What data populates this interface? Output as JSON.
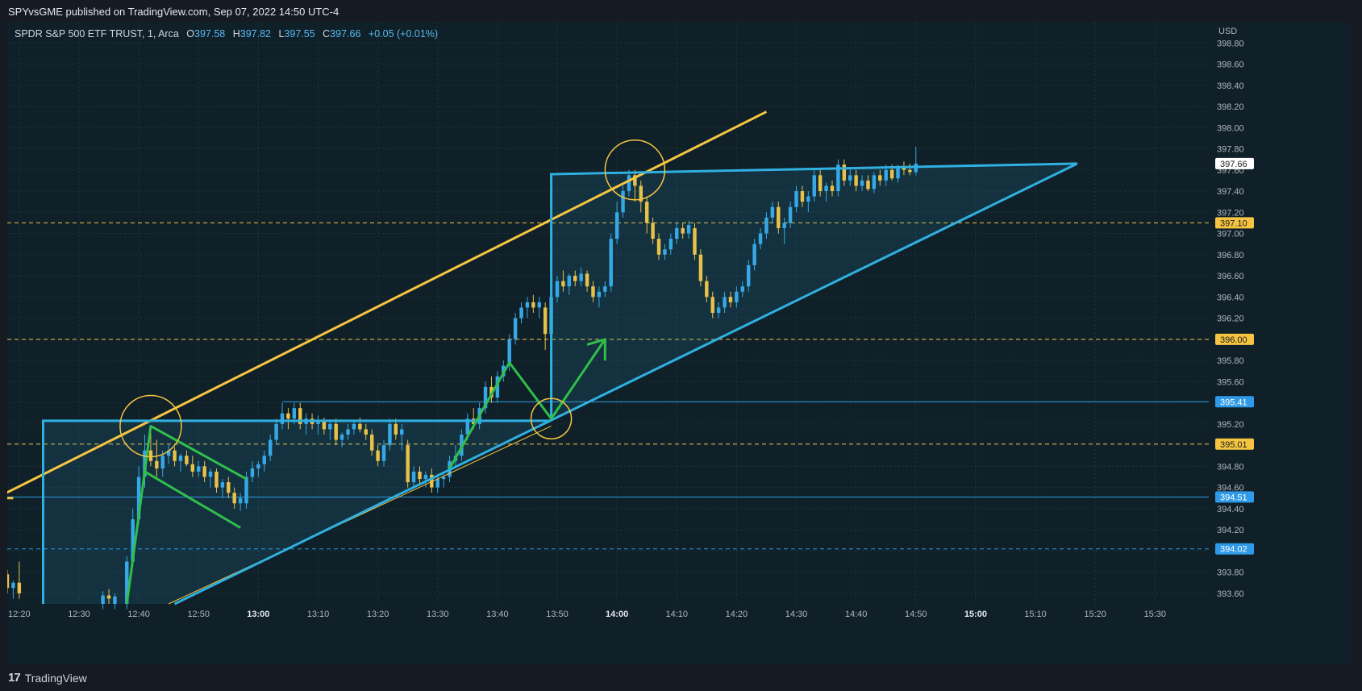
{
  "header": {
    "published": "SPYvsGME published on TradingView.com, Sep 07, 2022 14:50 UTC-4"
  },
  "legend": {
    "symbol": "SPDR S&P 500 ETF TRUST, 1, Arca",
    "open_label": "O",
    "open": "397.58",
    "high_label": "H",
    "high": "397.82",
    "low_label": "L",
    "low": "397.55",
    "close_label": "C",
    "close": "397.66",
    "change": "+0.05 (+0.01%)"
  },
  "footer": {
    "brand": "TradingView",
    "logo_glyph": "17"
  },
  "colors": {
    "background": "#151a23",
    "up_candle": "#37a8e6",
    "down_candle": "#e8c14a",
    "triangle": "#2fb0e0",
    "trendline": "#f5c542",
    "arrows": "#2fbf4a",
    "level_dashed": "#f5c542",
    "level_blue": "#2f9be8"
  },
  "chart_data": {
    "type": "candlestick",
    "symbol": "SPY",
    "interval": "1",
    "currency": "USD",
    "ylim": [
      393.5,
      399.0
    ],
    "y_ticks": [
      "393.60",
      "393.80",
      "394.00",
      "394.20",
      "394.40",
      "394.60",
      "394.80",
      "395.00",
      "395.20",
      "395.40",
      "395.60",
      "395.80",
      "396.00",
      "396.20",
      "396.40",
      "396.60",
      "396.80",
      "397.00",
      "397.20",
      "397.40",
      "397.60",
      "397.80",
      "398.00",
      "398.20",
      "398.40",
      "398.60",
      "398.80"
    ],
    "x_ticks": [
      "12:20",
      "12:30",
      "12:40",
      "12:50",
      "13:00",
      "13:10",
      "13:20",
      "13:30",
      "13:40",
      "13:50",
      "14:00",
      "14:10",
      "14:20",
      "14:30",
      "14:40",
      "14:50",
      "15:00",
      "15:10",
      "15:20",
      "15:30"
    ],
    "x_bold_ticks": [
      "13:00",
      "14:00",
      "15:00"
    ],
    "xlim_minutes_from_midnight": [
      738,
      939
    ],
    "price_badges": [
      {
        "label": "397.66",
        "value": 397.66,
        "style": "last"
      },
      {
        "label": "397.10",
        "value": 397.1,
        "style": "yellow"
      },
      {
        "label": "396.00",
        "value": 396.0,
        "style": "yellow"
      },
      {
        "label": "395.41",
        "value": 395.41,
        "style": "blue"
      },
      {
        "label": "395.01",
        "value": 395.01,
        "style": "yellow"
      },
      {
        "label": "394.51",
        "value": 394.51,
        "style": "blue"
      },
      {
        "label": "394.02",
        "value": 394.02,
        "style": "blue-dash"
      }
    ],
    "candles": [
      {
        "t": "12:17",
        "o": 393.7,
        "h": 393.85,
        "l": 393.6,
        "c": 393.78
      },
      {
        "t": "12:18",
        "o": 393.78,
        "h": 393.82,
        "l": 393.6,
        "c": 393.65
      },
      {
        "t": "12:19",
        "o": 393.65,
        "h": 393.72,
        "l": 393.55,
        "c": 393.7
      },
      {
        "t": "12:20",
        "o": 393.7,
        "h": 393.9,
        "l": 393.55,
        "c": 393.6
      },
      {
        "t": "12:34",
        "o": 393.5,
        "h": 393.62,
        "l": 393.45,
        "c": 393.58
      },
      {
        "t": "12:35",
        "o": 393.58,
        "h": 393.64,
        "l": 393.5,
        "c": 393.55
      },
      {
        "t": "12:36",
        "o": 393.5,
        "h": 393.6,
        "l": 393.45,
        "c": 393.57
      },
      {
        "t": "12:38",
        "o": 393.5,
        "h": 393.95,
        "l": 393.45,
        "c": 393.9
      },
      {
        "t": "12:39",
        "o": 393.9,
        "h": 394.4,
        "l": 393.85,
        "c": 394.3
      },
      {
        "t": "12:40",
        "o": 394.3,
        "h": 394.8,
        "l": 394.25,
        "c": 394.7
      },
      {
        "t": "12:41",
        "o": 394.7,
        "h": 395.1,
        "l": 394.6,
        "c": 394.95
      },
      {
        "t": "12:42",
        "o": 394.95,
        "h": 395.15,
        "l": 394.8,
        "c": 394.85
      },
      {
        "t": "12:43",
        "o": 394.85,
        "h": 395.05,
        "l": 394.7,
        "c": 394.78
      },
      {
        "t": "12:44",
        "o": 394.78,
        "h": 394.95,
        "l": 394.7,
        "c": 394.9
      },
      {
        "t": "12:45",
        "o": 394.9,
        "h": 395.0,
        "l": 394.82,
        "c": 394.95
      },
      {
        "t": "12:46",
        "o": 394.95,
        "h": 394.98,
        "l": 394.8,
        "c": 394.85
      },
      {
        "t": "12:47",
        "o": 394.85,
        "h": 394.92,
        "l": 394.75,
        "c": 394.9
      },
      {
        "t": "12:48",
        "o": 394.9,
        "h": 394.95,
        "l": 394.8,
        "c": 394.82
      },
      {
        "t": "12:49",
        "o": 394.82,
        "h": 394.9,
        "l": 394.7,
        "c": 394.75
      },
      {
        "t": "12:50",
        "o": 394.75,
        "h": 394.85,
        "l": 394.7,
        "c": 394.8
      },
      {
        "t": "12:51",
        "o": 394.8,
        "h": 394.85,
        "l": 394.65,
        "c": 394.7
      },
      {
        "t": "12:52",
        "o": 394.7,
        "h": 394.78,
        "l": 394.6,
        "c": 394.75
      },
      {
        "t": "12:53",
        "o": 394.75,
        "h": 394.78,
        "l": 394.55,
        "c": 394.6
      },
      {
        "t": "12:54",
        "o": 394.6,
        "h": 394.68,
        "l": 394.5,
        "c": 394.65
      },
      {
        "t": "12:55",
        "o": 394.65,
        "h": 394.7,
        "l": 394.5,
        "c": 394.55
      },
      {
        "t": "12:56",
        "o": 394.55,
        "h": 394.6,
        "l": 394.4,
        "c": 394.45
      },
      {
        "t": "12:57",
        "o": 394.45,
        "h": 394.55,
        "l": 394.38,
        "c": 394.5
      },
      {
        "t": "12:58",
        "o": 394.45,
        "h": 394.75,
        "l": 394.4,
        "c": 394.7
      },
      {
        "t": "12:59",
        "o": 394.7,
        "h": 394.85,
        "l": 394.65,
        "c": 394.78
      },
      {
        "t": "13:00",
        "o": 394.78,
        "h": 394.85,
        "l": 394.7,
        "c": 394.82
      },
      {
        "t": "13:01",
        "o": 394.82,
        "h": 394.95,
        "l": 394.75,
        "c": 394.9
      },
      {
        "t": "13:02",
        "o": 394.9,
        "h": 395.1,
        "l": 394.85,
        "c": 395.05
      },
      {
        "t": "13:03",
        "o": 395.05,
        "h": 395.25,
        "l": 395.0,
        "c": 395.2
      },
      {
        "t": "13:04",
        "o": 395.2,
        "h": 395.4,
        "l": 395.15,
        "c": 395.3
      },
      {
        "t": "13:05",
        "o": 395.3,
        "h": 395.35,
        "l": 395.15,
        "c": 395.25
      },
      {
        "t": "13:06",
        "o": 395.25,
        "h": 395.4,
        "l": 395.2,
        "c": 395.35
      },
      {
        "t": "13:07",
        "o": 395.35,
        "h": 395.4,
        "l": 395.15,
        "c": 395.2
      },
      {
        "t": "13:08",
        "o": 395.2,
        "h": 395.3,
        "l": 395.1,
        "c": 395.25
      },
      {
        "t": "13:09",
        "o": 395.25,
        "h": 395.3,
        "l": 395.15,
        "c": 395.2
      },
      {
        "t": "13:10",
        "o": 395.2,
        "h": 395.28,
        "l": 395.1,
        "c": 395.22
      },
      {
        "t": "13:11",
        "o": 395.22,
        "h": 395.26,
        "l": 395.1,
        "c": 395.15
      },
      {
        "t": "13:12",
        "o": 395.15,
        "h": 395.22,
        "l": 395.05,
        "c": 395.2
      },
      {
        "t": "13:13",
        "o": 395.2,
        "h": 395.25,
        "l": 395.0,
        "c": 395.05
      },
      {
        "t": "13:14",
        "o": 395.05,
        "h": 395.12,
        "l": 394.98,
        "c": 395.1
      },
      {
        "t": "13:15",
        "o": 395.1,
        "h": 395.2,
        "l": 395.05,
        "c": 395.15
      },
      {
        "t": "13:16",
        "o": 395.15,
        "h": 395.22,
        "l": 395.1,
        "c": 395.2
      },
      {
        "t": "13:17",
        "o": 395.2,
        "h": 395.26,
        "l": 395.12,
        "c": 395.15
      },
      {
        "t": "13:18",
        "o": 395.15,
        "h": 395.2,
        "l": 395.05,
        "c": 395.1
      },
      {
        "t": "13:19",
        "o": 395.1,
        "h": 395.15,
        "l": 394.9,
        "c": 394.95
      },
      {
        "t": "13:20",
        "o": 394.95,
        "h": 395.0,
        "l": 394.8,
        "c": 394.85
      },
      {
        "t": "13:21",
        "o": 394.85,
        "h": 395.05,
        "l": 394.8,
        "c": 395.0
      },
      {
        "t": "13:22",
        "o": 395.0,
        "h": 395.25,
        "l": 394.95,
        "c": 395.2
      },
      {
        "t": "13:23",
        "o": 395.2,
        "h": 395.25,
        "l": 395.05,
        "c": 395.1
      },
      {
        "t": "13:24",
        "o": 395.1,
        "h": 395.2,
        "l": 394.95,
        "c": 395.15
      },
      {
        "t": "13:25",
        "o": 395.0,
        "h": 395.05,
        "l": 394.6,
        "c": 394.65
      },
      {
        "t": "13:26",
        "o": 394.65,
        "h": 394.8,
        "l": 394.6,
        "c": 394.75
      },
      {
        "t": "13:27",
        "o": 394.75,
        "h": 394.8,
        "l": 394.62,
        "c": 394.68
      },
      {
        "t": "13:28",
        "o": 394.68,
        "h": 394.75,
        "l": 394.6,
        "c": 394.72
      },
      {
        "t": "13:29",
        "o": 394.72,
        "h": 394.78,
        "l": 394.55,
        "c": 394.6
      },
      {
        "t": "13:30",
        "o": 394.6,
        "h": 394.7,
        "l": 394.55,
        "c": 394.68
      },
      {
        "t": "13:31",
        "o": 394.68,
        "h": 394.75,
        "l": 394.6,
        "c": 394.7
      },
      {
        "t": "13:32",
        "o": 394.7,
        "h": 394.9,
        "l": 394.65,
        "c": 394.85
      },
      {
        "t": "13:33",
        "o": 394.85,
        "h": 395.0,
        "l": 394.8,
        "c": 394.9
      },
      {
        "t": "13:34",
        "o": 394.9,
        "h": 395.15,
        "l": 394.85,
        "c": 395.1
      },
      {
        "t": "13:35",
        "o": 395.1,
        "h": 395.3,
        "l": 395.05,
        "c": 395.25
      },
      {
        "t": "13:36",
        "o": 395.25,
        "h": 395.35,
        "l": 395.15,
        "c": 395.2
      },
      {
        "t": "13:37",
        "o": 395.2,
        "h": 395.4,
        "l": 395.15,
        "c": 395.35
      },
      {
        "t": "13:38",
        "o": 395.35,
        "h": 395.6,
        "l": 395.3,
        "c": 395.55
      },
      {
        "t": "13:39",
        "o": 395.55,
        "h": 395.65,
        "l": 395.4,
        "c": 395.45
      },
      {
        "t": "13:40",
        "o": 395.45,
        "h": 395.7,
        "l": 395.4,
        "c": 395.65
      },
      {
        "t": "13:41",
        "o": 395.65,
        "h": 395.8,
        "l": 395.6,
        "c": 395.75
      },
      {
        "t": "13:42",
        "o": 395.75,
        "h": 396.05,
        "l": 395.7,
        "c": 396.0
      },
      {
        "t": "13:43",
        "o": 396.0,
        "h": 396.25,
        "l": 395.95,
        "c": 396.2
      },
      {
        "t": "13:44",
        "o": 396.2,
        "h": 396.35,
        "l": 396.15,
        "c": 396.3
      },
      {
        "t": "13:45",
        "o": 396.3,
        "h": 396.4,
        "l": 396.2,
        "c": 396.35
      },
      {
        "t": "13:46",
        "o": 396.35,
        "h": 396.42,
        "l": 396.25,
        "c": 396.3
      },
      {
        "t": "13:47",
        "o": 396.3,
        "h": 396.4,
        "l": 396.2,
        "c": 396.35
      },
      {
        "t": "13:48",
        "o": 396.3,
        "h": 396.35,
        "l": 395.9,
        "c": 396.05
      },
      {
        "t": "13:49",
        "o": 396.05,
        "h": 396.45,
        "l": 395.95,
        "c": 396.4
      },
      {
        "t": "13:50",
        "o": 396.4,
        "h": 396.6,
        "l": 396.35,
        "c": 396.55
      },
      {
        "t": "13:51",
        "o": 396.55,
        "h": 396.65,
        "l": 396.45,
        "c": 396.5
      },
      {
        "t": "13:52",
        "o": 396.5,
        "h": 396.62,
        "l": 396.42,
        "c": 396.6
      },
      {
        "t": "13:53",
        "o": 396.6,
        "h": 396.65,
        "l": 396.5,
        "c": 396.55
      },
      {
        "t": "13:54",
        "o": 396.55,
        "h": 396.68,
        "l": 396.5,
        "c": 396.62
      },
      {
        "t": "13:55",
        "o": 396.62,
        "h": 396.65,
        "l": 396.45,
        "c": 396.5
      },
      {
        "t": "13:56",
        "o": 396.5,
        "h": 396.55,
        "l": 396.35,
        "c": 396.4
      },
      {
        "t": "13:57",
        "o": 396.4,
        "h": 396.5,
        "l": 396.3,
        "c": 396.45
      },
      {
        "t": "13:58",
        "o": 396.45,
        "h": 396.55,
        "l": 396.4,
        "c": 396.5
      },
      {
        "t": "13:59",
        "o": 396.5,
        "h": 397.0,
        "l": 396.45,
        "c": 396.95
      },
      {
        "t": "14:00",
        "o": 396.95,
        "h": 397.3,
        "l": 396.9,
        "c": 397.2
      },
      {
        "t": "14:01",
        "o": 397.2,
        "h": 397.45,
        "l": 397.15,
        "c": 397.4
      },
      {
        "t": "14:02",
        "o": 397.4,
        "h": 397.6,
        "l": 397.35,
        "c": 397.55
      },
      {
        "t": "14:03",
        "o": 397.55,
        "h": 397.6,
        "l": 397.3,
        "c": 397.45
      },
      {
        "t": "14:04",
        "o": 397.45,
        "h": 397.5,
        "l": 397.2,
        "c": 397.3
      },
      {
        "t": "14:05",
        "o": 397.3,
        "h": 397.35,
        "l": 397.0,
        "c": 397.1
      },
      {
        "t": "14:06",
        "o": 397.1,
        "h": 397.15,
        "l": 396.9,
        "c": 396.95
      },
      {
        "t": "14:07",
        "o": 396.95,
        "h": 397.0,
        "l": 396.75,
        "c": 396.8
      },
      {
        "t": "14:08",
        "o": 396.8,
        "h": 396.9,
        "l": 396.75,
        "c": 396.85
      },
      {
        "t": "14:09",
        "o": 396.85,
        "h": 397.0,
        "l": 396.8,
        "c": 396.95
      },
      {
        "t": "14:10",
        "o": 396.95,
        "h": 397.1,
        "l": 396.9,
        "c": 397.05
      },
      {
        "t": "14:11",
        "o": 397.05,
        "h": 397.1,
        "l": 396.95,
        "c": 397.0
      },
      {
        "t": "14:12",
        "o": 397.0,
        "h": 397.12,
        "l": 396.95,
        "c": 397.08
      },
      {
        "t": "14:13",
        "o": 397.05,
        "h": 397.1,
        "l": 396.75,
        "c": 396.8
      },
      {
        "t": "14:14",
        "o": 396.8,
        "h": 396.85,
        "l": 396.5,
        "c": 396.55
      },
      {
        "t": "14:15",
        "o": 396.55,
        "h": 396.6,
        "l": 396.35,
        "c": 396.4
      },
      {
        "t": "14:16",
        "o": 396.4,
        "h": 396.45,
        "l": 396.2,
        "c": 396.25
      },
      {
        "t": "14:17",
        "o": 396.25,
        "h": 396.35,
        "l": 396.2,
        "c": 396.3
      },
      {
        "t": "14:18",
        "o": 396.3,
        "h": 396.45,
        "l": 396.25,
        "c": 396.4
      },
      {
        "t": "14:19",
        "o": 396.4,
        "h": 396.45,
        "l": 396.3,
        "c": 396.35
      },
      {
        "t": "14:20",
        "o": 396.35,
        "h": 396.5,
        "l": 396.3,
        "c": 396.45
      },
      {
        "t": "14:21",
        "o": 396.45,
        "h": 396.55,
        "l": 396.4,
        "c": 396.5
      },
      {
        "t": "14:22",
        "o": 396.5,
        "h": 396.75,
        "l": 396.45,
        "c": 396.7
      },
      {
        "t": "14:23",
        "o": 396.7,
        "h": 396.95,
        "l": 396.65,
        "c": 396.9
      },
      {
        "t": "14:24",
        "o": 396.9,
        "h": 397.05,
        "l": 396.85,
        "c": 397.0
      },
      {
        "t": "14:25",
        "o": 397.0,
        "h": 397.2,
        "l": 396.95,
        "c": 397.15
      },
      {
        "t": "14:26",
        "o": 397.15,
        "h": 397.3,
        "l": 397.1,
        "c": 397.25
      },
      {
        "t": "14:27",
        "o": 397.25,
        "h": 397.3,
        "l": 397.0,
        "c": 397.05
      },
      {
        "t": "14:28",
        "o": 397.05,
        "h": 397.15,
        "l": 396.9,
        "c": 397.1
      },
      {
        "t": "14:29",
        "o": 397.1,
        "h": 397.3,
        "l": 397.05,
        "c": 397.25
      },
      {
        "t": "14:30",
        "o": 397.25,
        "h": 397.45,
        "l": 397.2,
        "c": 397.4
      },
      {
        "t": "14:31",
        "o": 397.4,
        "h": 397.45,
        "l": 397.25,
        "c": 397.3
      },
      {
        "t": "14:32",
        "o": 397.3,
        "h": 397.4,
        "l": 397.2,
        "c": 397.35
      },
      {
        "t": "14:33",
        "o": 397.35,
        "h": 397.6,
        "l": 397.3,
        "c": 397.55
      },
      {
        "t": "14:34",
        "o": 397.55,
        "h": 397.6,
        "l": 397.35,
        "c": 397.4
      },
      {
        "t": "14:35",
        "o": 397.4,
        "h": 397.48,
        "l": 397.3,
        "c": 397.45
      },
      {
        "t": "14:36",
        "o": 397.45,
        "h": 397.5,
        "l": 397.35,
        "c": 397.4
      },
      {
        "t": "14:37",
        "o": 397.4,
        "h": 397.7,
        "l": 397.35,
        "c": 397.65
      },
      {
        "t": "14:38",
        "o": 397.65,
        "h": 397.7,
        "l": 397.45,
        "c": 397.5
      },
      {
        "t": "14:39",
        "o": 397.5,
        "h": 397.62,
        "l": 397.45,
        "c": 397.55
      },
      {
        "t": "14:40",
        "o": 397.55,
        "h": 397.6,
        "l": 397.4,
        "c": 397.45
      },
      {
        "t": "14:41",
        "o": 397.45,
        "h": 397.55,
        "l": 397.4,
        "c": 397.5
      },
      {
        "t": "14:42",
        "o": 397.5,
        "h": 397.55,
        "l": 397.4,
        "c": 397.42
      },
      {
        "t": "14:43",
        "o": 397.42,
        "h": 397.58,
        "l": 397.38,
        "c": 397.55
      },
      {
        "t": "14:44",
        "o": 397.55,
        "h": 397.6,
        "l": 397.45,
        "c": 397.5
      },
      {
        "t": "14:45",
        "o": 397.5,
        "h": 397.65,
        "l": 397.45,
        "c": 397.6
      },
      {
        "t": "14:46",
        "o": 397.6,
        "h": 397.65,
        "l": 397.5,
        "c": 397.52
      },
      {
        "t": "14:47",
        "o": 397.52,
        "h": 397.65,
        "l": 397.48,
        "c": 397.62
      },
      {
        "t": "14:48",
        "o": 397.62,
        "h": 397.68,
        "l": 397.55,
        "c": 397.6
      },
      {
        "t": "14:49",
        "o": 397.6,
        "h": 397.66,
        "l": 397.55,
        "c": 397.58
      },
      {
        "t": "14:50",
        "o": 397.58,
        "h": 397.82,
        "l": 397.55,
        "c": 397.66
      }
    ]
  }
}
